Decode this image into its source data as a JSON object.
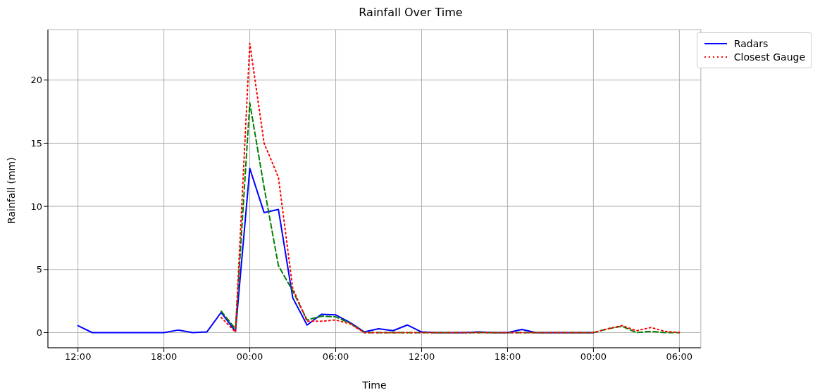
{
  "chart_data": {
    "type": "line",
    "title": "Rainfall Over Time",
    "xlabel": "Time",
    "ylabel": "Rainfall (mm)",
    "x": [
      "--01-01T12:00",
      "--01-01T13:00",
      "--01-01T14:00",
      "--01-01T15:00",
      "--01-01T16:00",
      "--01-01T17:00",
      "--01-01T18:00",
      "--01-01T19:00",
      "--01-01T20:00",
      "--01-01T21:00",
      "--01-01T22:00",
      "--01-01T23:00",
      "--01-02T00:00",
      "--01-02T01:00",
      "--01-02T02:00",
      "--01-02T03:00",
      "--01-02T04:00",
      "--01-02T05:00",
      "--01-02T06:00",
      "--01-02T07:00",
      "--01-02T08:00",
      "--01-02T09:00",
      "--01-02T10:00",
      "--01-02T11:00",
      "--01-02T12:00",
      "--01-02T13:00",
      "--01-02T14:00",
      "--01-02T15:00",
      "--01-02T16:00",
      "--01-02T17:00",
      "--01-02T18:00",
      "--01-02T19:00",
      "--01-02T20:00",
      "--01-02T21:00",
      "--01-02T22:00",
      "--01-02T23:00",
      "--01-03T00:00",
      "--01-03T01:00",
      "--01-03T02:00",
      "--01-03T03:00",
      "--01-03T04:00",
      "--01-03T05:00",
      "--01-03T06:00"
    ],
    "series": [
      {
        "name": "Radars",
        "color": "#0000ff",
        "line_style": "solid",
        "values": [
          0.55,
          0,
          0,
          0,
          0,
          0,
          0,
          0.2,
          0,
          0.05,
          1.6,
          0.1,
          13.0,
          9.5,
          9.75,
          2.75,
          0.6,
          1.45,
          1.4,
          0.8,
          0.05,
          0.3,
          0.15,
          0.6,
          0.05,
          0,
          0,
          0,
          0.05,
          0,
          0,
          0.25,
          0,
          0,
          0,
          0,
          0,
          null,
          null,
          null,
          null,
          null,
          null
        ]
      },
      {
        "color": "#008000",
        "line_style": "dashed",
        "values": [
          null,
          null,
          null,
          null,
          null,
          null,
          null,
          null,
          null,
          null,
          1.7,
          0.3,
          18.2,
          11.5,
          5.3,
          3.3,
          1.0,
          1.3,
          1.25,
          0.75,
          0,
          0,
          0,
          0,
          0,
          0,
          0,
          0,
          0,
          0,
          0,
          0,
          0,
          0,
          0,
          0,
          0,
          0.3,
          0.5,
          0,
          0.1,
          0,
          0
        ]
      },
      {
        "name": "Closest Gauge",
        "color": "#ff0000",
        "line_style": "dotted",
        "values": [
          null,
          null,
          null,
          null,
          null,
          null,
          null,
          null,
          null,
          null,
          1.2,
          0.05,
          22.9,
          15.0,
          12.3,
          3.5,
          0.9,
          0.9,
          1.0,
          0.7,
          0,
          0,
          0,
          0,
          0,
          0,
          0,
          0,
          0,
          0,
          0,
          0,
          0,
          0,
          0,
          0,
          0,
          0.3,
          0.55,
          0.15,
          0.4,
          0.1,
          0
        ]
      }
    ],
    "xlim": [
      "--01-01T09:54",
      "--01-03T07:30"
    ],
    "xticks": [
      {
        "value": "--01-01T12:00",
        "label": "12:00"
      },
      {
        "value": "--01-01T18:00",
        "label": "18:00"
      },
      {
        "value": "--01-02T00:00",
        "label": "00:00"
      },
      {
        "value": "--01-02T06:00",
        "label": "06:00"
      },
      {
        "value": "--01-02T12:00",
        "label": "12:00"
      },
      {
        "value": "--01-02T18:00",
        "label": "18:00"
      },
      {
        "value": "--01-03T00:00",
        "label": "00:00"
      },
      {
        "value": "--01-03T06:00",
        "label": "06:00"
      }
    ],
    "ylim": [
      -1.2,
      24
    ],
    "yticks": [
      0,
      5,
      10,
      15,
      20
    ],
    "grid": true,
    "legend": "top right",
    "marker": "none"
  }
}
